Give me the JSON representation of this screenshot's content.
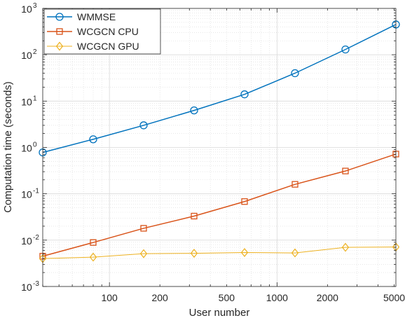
{
  "chart_data": {
    "type": "line",
    "xscale": "log",
    "yscale": "log",
    "xlim": [
      40,
      5120
    ],
    "ylim": [
      0.001,
      1000
    ],
    "xlabel": "User number",
    "ylabel": "Computation time (seconds)",
    "x_ticks": [
      {
        "value": 100,
        "label": "100"
      },
      {
        "value": 200,
        "label": "200"
      },
      {
        "value": 500,
        "label": "500"
      },
      {
        "value": 1000,
        "label": "1000"
      },
      {
        "value": 2000,
        "label": "2000"
      },
      {
        "value": 5000,
        "label": "5000"
      }
    ],
    "y_ticks": [
      {
        "value": 0.001,
        "base": "10",
        "exp": "-3"
      },
      {
        "value": 0.01,
        "base": "10",
        "exp": "-2"
      },
      {
        "value": 0.1,
        "base": "10",
        "exp": "-1"
      },
      {
        "value": 1,
        "base": "10",
        "exp": "0"
      },
      {
        "value": 10,
        "base": "10",
        "exp": "1"
      },
      {
        "value": 100,
        "base": "10",
        "exp": "2"
      },
      {
        "value": 1000,
        "base": "10",
        "exp": "3"
      }
    ],
    "grid": true,
    "legend_position": "top-left",
    "x": [
      40,
      80,
      160,
      320,
      640,
      1280,
      2560,
      5120
    ],
    "series": [
      {
        "name": "WMMSE",
        "color": "#0072BD",
        "marker": "circle",
        "values": [
          0.78,
          1.5,
          3.0,
          6.3,
          14,
          40,
          130,
          450
        ]
      },
      {
        "name": "WCGCN CPU",
        "color": "#D95319",
        "marker": "square",
        "values": [
          0.0045,
          0.0089,
          0.018,
          0.033,
          0.068,
          0.16,
          0.31,
          0.72
        ]
      },
      {
        "name": "WCGCN GPU",
        "color": "#EDB120",
        "marker": "diamond",
        "values": [
          0.004,
          0.0043,
          0.0051,
          0.0052,
          0.0054,
          0.0053,
          0.007,
          0.0071
        ]
      }
    ]
  }
}
